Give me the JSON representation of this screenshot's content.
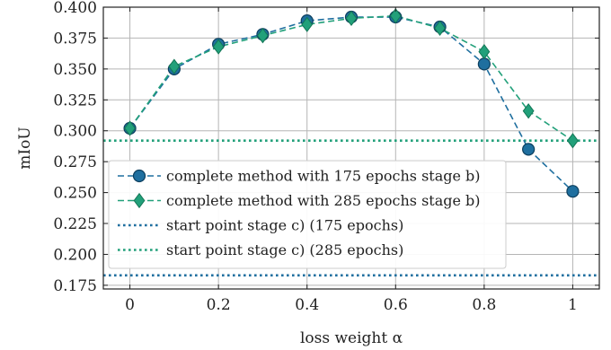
{
  "chart_data": {
    "type": "line",
    "xlabel": "loss weight α",
    "ylabel": "mIoU",
    "xlim": [
      -0.06,
      1.06
    ],
    "ylim": [
      0.172,
      0.4
    ],
    "x_ticks": [
      0,
      0.2,
      0.4,
      0.6,
      0.8,
      1
    ],
    "x_tick_labels": [
      "0",
      "0.2",
      "0.4",
      "0.6",
      "0.8",
      "1"
    ],
    "y_ticks": [
      0.175,
      0.2,
      0.225,
      0.25,
      0.275,
      0.3,
      0.325,
      0.35,
      0.375,
      0.4
    ],
    "y_tick_labels": [
      "0.175",
      "0.200",
      "0.225",
      "0.250",
      "0.275",
      "0.300",
      "0.325",
      "0.350",
      "0.375",
      "0.400"
    ],
    "grid": true,
    "legend_position": "lower-left",
    "x": [
      0,
      0.1,
      0.2,
      0.3,
      0.4,
      0.5,
      0.6,
      0.7,
      0.8,
      0.9,
      1.0
    ],
    "series": [
      {
        "name": "complete method with 175 epochs stage b)",
        "marker": "circle",
        "line_style": "dashed",
        "color": "#1f6f9f",
        "values": [
          0.302,
          0.35,
          0.37,
          0.378,
          0.389,
          0.392,
          0.392,
          0.384,
          0.354,
          0.285,
          0.251
        ]
      },
      {
        "name": "complete method with 285 epochs stage b)",
        "marker": "diamond",
        "line_style": "dashed",
        "color": "#22a07a",
        "values": [
          0.302,
          0.352,
          0.368,
          0.377,
          0.386,
          0.391,
          0.393,
          0.383,
          0.364,
          0.316,
          0.292
        ]
      }
    ],
    "reference_lines": [
      {
        "name": "start point stage c) (175 epochs)",
        "y": 0.183,
        "line_style": "dotted",
        "color": "#1f6f9f"
      },
      {
        "name": "start point stage c) (285 epochs)",
        "y": 0.292,
        "line_style": "dotted",
        "color": "#22a07a"
      }
    ]
  }
}
